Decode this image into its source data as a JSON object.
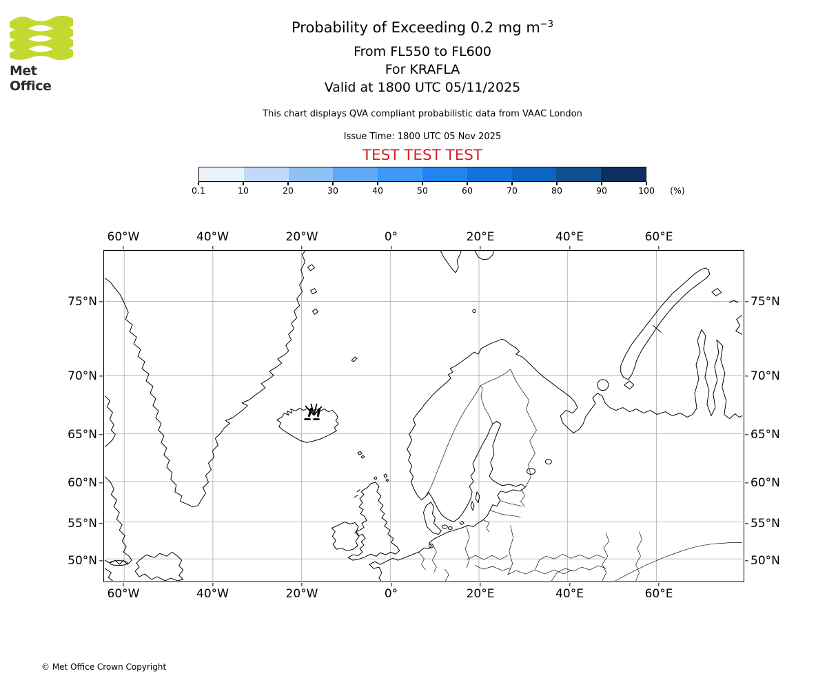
{
  "brand": {
    "name": "Met Office",
    "logo_green": "#c3d930"
  },
  "header": {
    "title": "Probability of Exceeding 0.2 mg m",
    "title_superscript": "−3",
    "subtitle_levels": "From FL550 to FL600",
    "subtitle_volcano": "For KRAFLA",
    "subtitle_valid": "Valid at 1800 UTC 05/11/2025",
    "description": "This chart displays QVA compliant probabilistic data from VAAC London",
    "issue_time": "Issue Time: 1800 UTC 05 Nov 2025",
    "test_banner": "TEST TEST TEST",
    "test_banner_color": "#d42121"
  },
  "colorbar": {
    "tick_labels": [
      "0.1",
      "10",
      "20",
      "30",
      "40",
      "50",
      "60",
      "70",
      "80",
      "90",
      "100"
    ],
    "unit": "(%)",
    "colors": [
      "#e9f1fb",
      "#c2daf7",
      "#8fc2f3",
      "#60a9f5",
      "#3d99f5",
      "#2185f1",
      "#1173dd",
      "#0a66c2",
      "#11508f",
      "#0d3060"
    ]
  },
  "map": {
    "lon_labels": [
      "60°W",
      "40°W",
      "20°W",
      "0°",
      "20°E",
      "40°E",
      "60°E"
    ],
    "lat_labels": [
      "75°N",
      "70°N",
      "65°N",
      "60°N",
      "55°N",
      "50°N"
    ],
    "volcano": "KRAFLA"
  },
  "footer": {
    "copyright": "© Met Office Crown Copyright"
  },
  "chart_data": {
    "type": "heatmap",
    "title": "Probability of Exceeding 0.2 mg m⁻³",
    "subtitles": [
      "From FL550 to FL600",
      "For KRAFLA",
      "Valid at 1800 UTC 05/11/2025"
    ],
    "volcano": "KRAFLA",
    "flight_levels": [
      "FL550",
      "FL600"
    ],
    "threshold": "0.2 mg m⁻³",
    "valid_time": "1800 UTC 05/11/2025",
    "issue_time": "1800 UTC 05 Nov 2025",
    "source": "VAAC London",
    "status_banner": "TEST TEST TEST",
    "colorbar": {
      "label": "(%)",
      "tick_values": [
        0.1,
        10,
        20,
        30,
        40,
        50,
        60,
        70,
        80,
        90,
        100
      ],
      "colors": [
        "#e9f1fb",
        "#c2daf7",
        "#8fc2f3",
        "#60a9f5",
        "#3d99f5",
        "#2185f1",
        "#1173dd",
        "#0a66c2",
        "#11508f",
        "#0d3060"
      ]
    },
    "map_extent": {
      "lon_min": -64,
      "lon_max": 79,
      "lat_min": 48,
      "lat_max": 78
    },
    "grid": {
      "lon_lines_deg": [
        -60,
        -40,
        -20,
        0,
        20,
        40,
        60
      ],
      "lat_lines_deg": [
        50,
        55,
        60,
        65,
        70,
        75
      ],
      "grid_on": true
    },
    "volcano_marker": {
      "name": "KRAFLA",
      "approx_lat": 65.7,
      "approx_lon": -16.8
    },
    "exceedance_regions": []
  }
}
